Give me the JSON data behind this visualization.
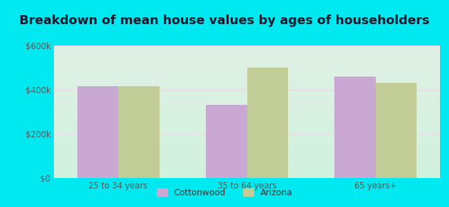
{
  "title": "Breakdown of mean house values by ages of householders",
  "categories": [
    "25 to 34 years",
    "35 to 64 years",
    "65 years+"
  ],
  "cottonwood_values": [
    415000,
    330000,
    460000
  ],
  "arizona_values": [
    415000,
    500000,
    430000
  ],
  "cottonwood_color": "#c9a8d4",
  "arizona_color": "#c2cc96",
  "background_outer": "#00e8f0",
  "ylim": [
    0,
    600000
  ],
  "yticks": [
    0,
    200000,
    400000,
    600000
  ],
  "ytick_labels": [
    "$0",
    "$200k",
    "$400k",
    "$600k"
  ],
  "legend_labels": [
    "Cottonwood",
    "Arizona"
  ],
  "bar_width": 0.32,
  "title_fontsize": 13,
  "tick_fontsize": 8.5,
  "legend_fontsize": 9
}
